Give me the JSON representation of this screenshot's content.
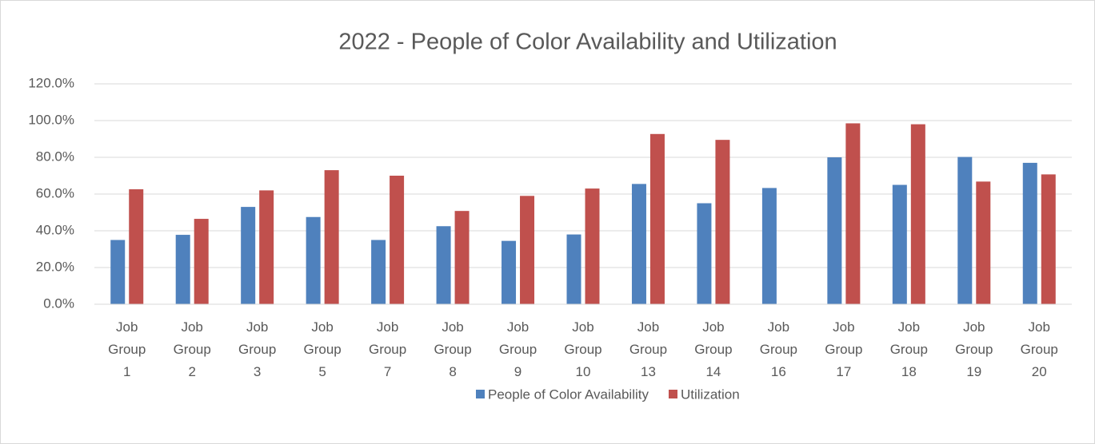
{
  "chart_data": {
    "type": "bar",
    "title": "2022 - People of Color Availability and Utilization",
    "categories": [
      "Job Group 1",
      "Job Group 2",
      "Job Group 3",
      "Job Group 5",
      "Job Group 7",
      "Job Group 8",
      "Job Group 9",
      "Job Group 10",
      "Job Group 13",
      "Job Group 14",
      "Job Group 16",
      "Job Group 17",
      "Job Group 18",
      "Job Group 19",
      "Job Group 20"
    ],
    "series": [
      {
        "name": "People of Color Availability",
        "color": "#4f81bd",
        "values": [
          35.0,
          37.8,
          53.0,
          47.5,
          35.0,
          42.5,
          34.5,
          38.0,
          65.5,
          55.0,
          63.3,
          80.0,
          65.0,
          80.2,
          77.0
        ]
      },
      {
        "name": "Utilization",
        "color": "#c0504d",
        "values": [
          62.6,
          46.5,
          62.0,
          73.0,
          70.0,
          50.8,
          59.0,
          63.0,
          92.7,
          89.5,
          null,
          98.5,
          98.0,
          66.8,
          70.7
        ]
      }
    ],
    "ylim": [
      0,
      120
    ],
    "yticks": [
      {
        "value": 0,
        "label": "0.0%"
      },
      {
        "value": 20,
        "label": "20.0%"
      },
      {
        "value": 40,
        "label": "40.0%"
      },
      {
        "value": 60,
        "label": "60.0%"
      },
      {
        "value": 80,
        "label": "80.0%"
      },
      {
        "value": 100,
        "label": "100.0%"
      },
      {
        "value": 120,
        "label": "120.0%"
      }
    ],
    "grid": true,
    "legend": "bottom"
  }
}
